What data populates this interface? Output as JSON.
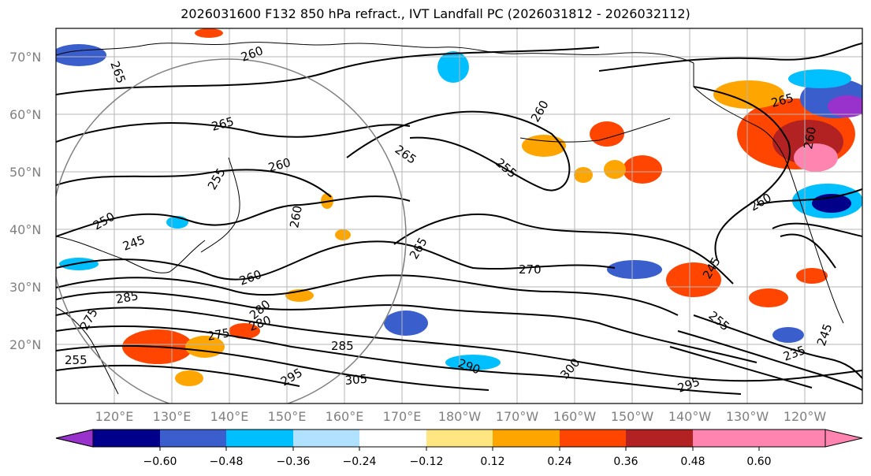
{
  "title": "2026031600 F132 850 hPa refract., IVT Landfall PC (2026031812 - 2026032112)",
  "lat_labels": [
    "70°N",
    "60°N",
    "50°N",
    "40°N",
    "30°N",
    "20°N"
  ],
  "lon_labels": [
    "120°E",
    "130°E",
    "140°E",
    "150°E",
    "160°E",
    "170°E",
    "180°W",
    "170°W",
    "160°W",
    "150°W",
    "140°W",
    "130°W",
    "120°W"
  ],
  "contour_labels": [
    "265",
    "260",
    "265",
    "260",
    "260",
    "250",
    "245",
    "255",
    "265",
    "260",
    "265",
    "255",
    "260",
    "265",
    "260",
    "260",
    "270",
    "275",
    "285",
    "280",
    "285",
    "290",
    "295",
    "300",
    "305",
    "295",
    "275",
    "255",
    "245",
    "255",
    "235",
    "245",
    "280"
  ],
  "colorbar": {
    "ticks": [
      "−0.60",
      "−0.48",
      "−0.36",
      "−0.24",
      "−0.12",
      "0.12",
      "0.24",
      "0.36",
      "0.48",
      "0.60"
    ],
    "colors": [
      "#9932cc",
      "#00008b",
      "#3a5fcd",
      "#00bfff",
      "#b0e2ff",
      "#ffffff",
      "#ffe680",
      "#ffa500",
      "#ff4500",
      "#b22222",
      "#ff85b0"
    ]
  }
}
